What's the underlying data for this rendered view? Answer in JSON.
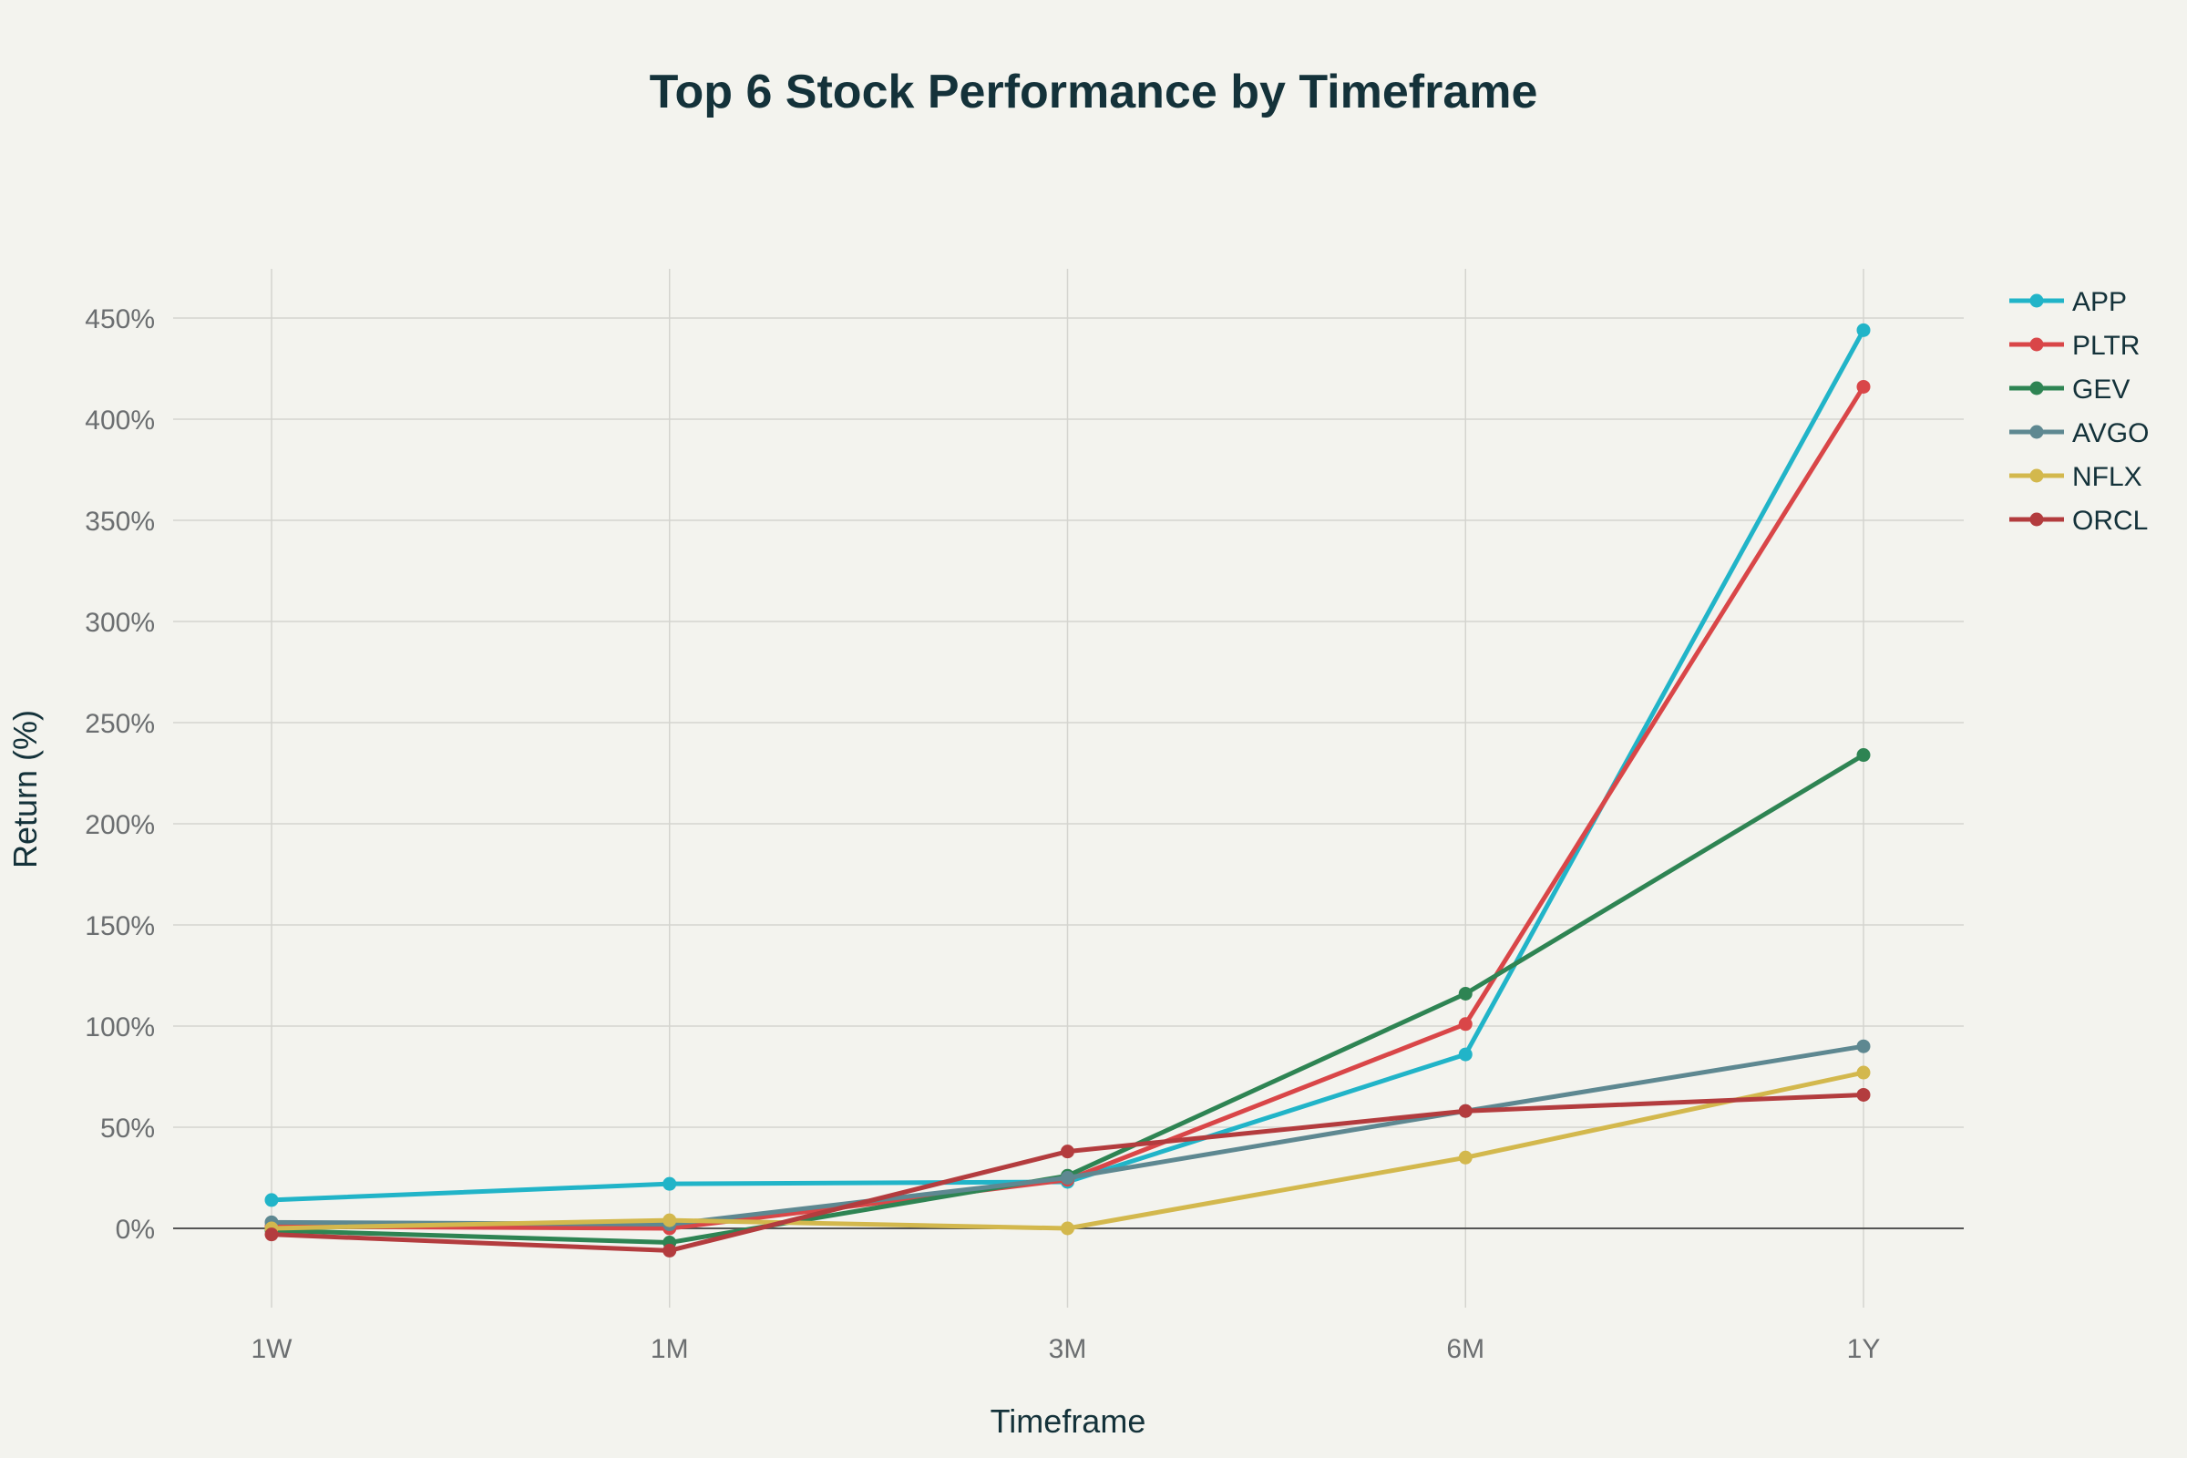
{
  "chart_data": {
    "type": "line",
    "title": "Top 6 Stock Performance by Timeframe",
    "xlabel": "Timeframe",
    "ylabel": "Return (%)",
    "categories": [
      "1W",
      "1M",
      "3M",
      "6M",
      "1Y"
    ],
    "ylim": [
      -45,
      475
    ],
    "yticks": [
      0,
      50,
      100,
      150,
      200,
      250,
      300,
      350,
      400,
      450
    ],
    "ytick_labels": [
      "0%",
      "50%",
      "100%",
      "150%",
      "200%",
      "250%",
      "300%",
      "350%",
      "400%",
      "450%"
    ],
    "grid": true,
    "legend_position": "top-right",
    "series": [
      {
        "name": "APP",
        "color": "#21b4c8",
        "values": [
          14,
          22,
          23,
          86,
          444
        ]
      },
      {
        "name": "PLTR",
        "color": "#d94648",
        "values": [
          1,
          0,
          24,
          101,
          416
        ]
      },
      {
        "name": "GEV",
        "color": "#2e8453",
        "values": [
          -1,
          -7,
          26,
          116,
          234
        ]
      },
      {
        "name": "AVGO",
        "color": "#5e8891",
        "values": [
          3,
          2,
          25,
          58,
          90
        ]
      },
      {
        "name": "NFLX",
        "color": "#d3b84d",
        "values": [
          0,
          4,
          0,
          35,
          77
        ]
      },
      {
        "name": "ORCL",
        "color": "#b33c3e",
        "values": [
          -3,
          -11,
          38,
          58,
          66
        ]
      }
    ]
  }
}
